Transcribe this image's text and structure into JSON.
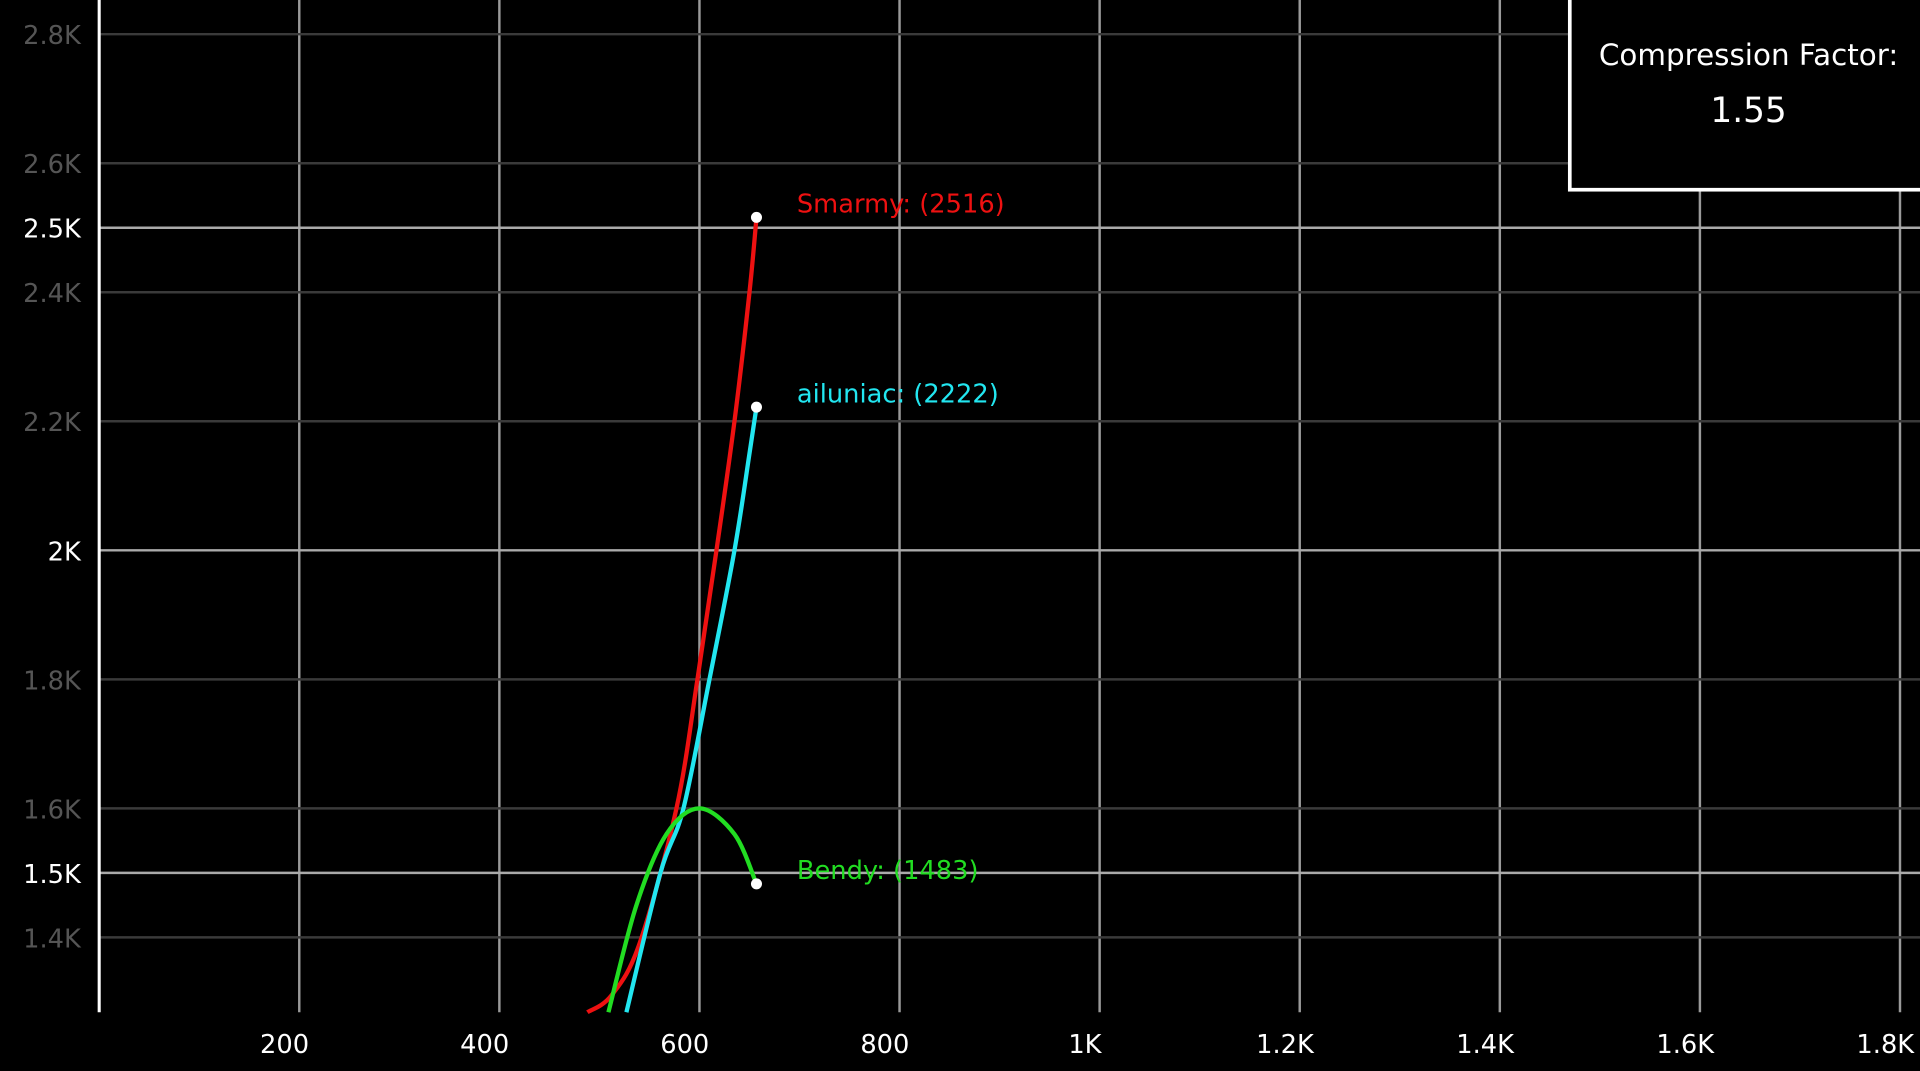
{
  "chart_data": {
    "type": "line",
    "xlim": [
      0,
      1820
    ],
    "ylim": [
      1284,
      2853
    ],
    "xticks": [
      200,
      400,
      600,
      800,
      {
        "value": 1000,
        "label": "1K"
      },
      {
        "value": 1200,
        "label": "1.2K"
      },
      {
        "value": 1400,
        "label": "1.4K"
      },
      {
        "value": 1600,
        "label": "1.6K"
      },
      {
        "value": 1800,
        "label": "1.8K"
      }
    ],
    "yticks": [
      {
        "value": 1400,
        "label": "1.4K"
      },
      {
        "value": 1500,
        "label": "1.5K"
      },
      {
        "value": 1600,
        "label": "1.6K"
      },
      {
        "value": 1800,
        "label": "1.8K"
      },
      {
        "value": 2000,
        "label": "2K"
      },
      {
        "value": 2200,
        "label": "2.2K"
      },
      {
        "value": 2400,
        "label": "2.4K"
      },
      {
        "value": 2500,
        "label": "2.5K"
      },
      {
        "value": 2600,
        "label": "2.6K"
      },
      {
        "value": 2800,
        "label": "2.8K"
      }
    ],
    "y_major": [
      1500,
      2000,
      2500
    ],
    "grid": true,
    "series": [
      {
        "label": "Smarmy: (2516)",
        "color": "#ee1111",
        "x": [
          488,
          512,
          540,
          577,
          598,
          617,
          635,
          650,
          657
        ],
        "values": [
          1284,
          1310,
          1390,
          1600,
          1800,
          2000,
          2200,
          2400,
          2516
        ]
      },
      {
        "label": "ailuniac: (2222)",
        "color": "#22e6f0",
        "x": [
          527,
          561,
          584,
          610,
          635,
          650,
          657
        ],
        "values": [
          1284,
          1500,
          1600,
          1800,
          2000,
          2150,
          2222
        ]
      },
      {
        "label": "Bendy: (1483)",
        "color": "#22dd22",
        "x": [
          509,
          537,
          567,
          600,
          635,
          657
        ],
        "values": [
          1284,
          1450,
          1560,
          1600,
          1560,
          1483
        ]
      }
    ],
    "annotation": {
      "title": "Compression Factor:",
      "value": 1.55
    }
  }
}
